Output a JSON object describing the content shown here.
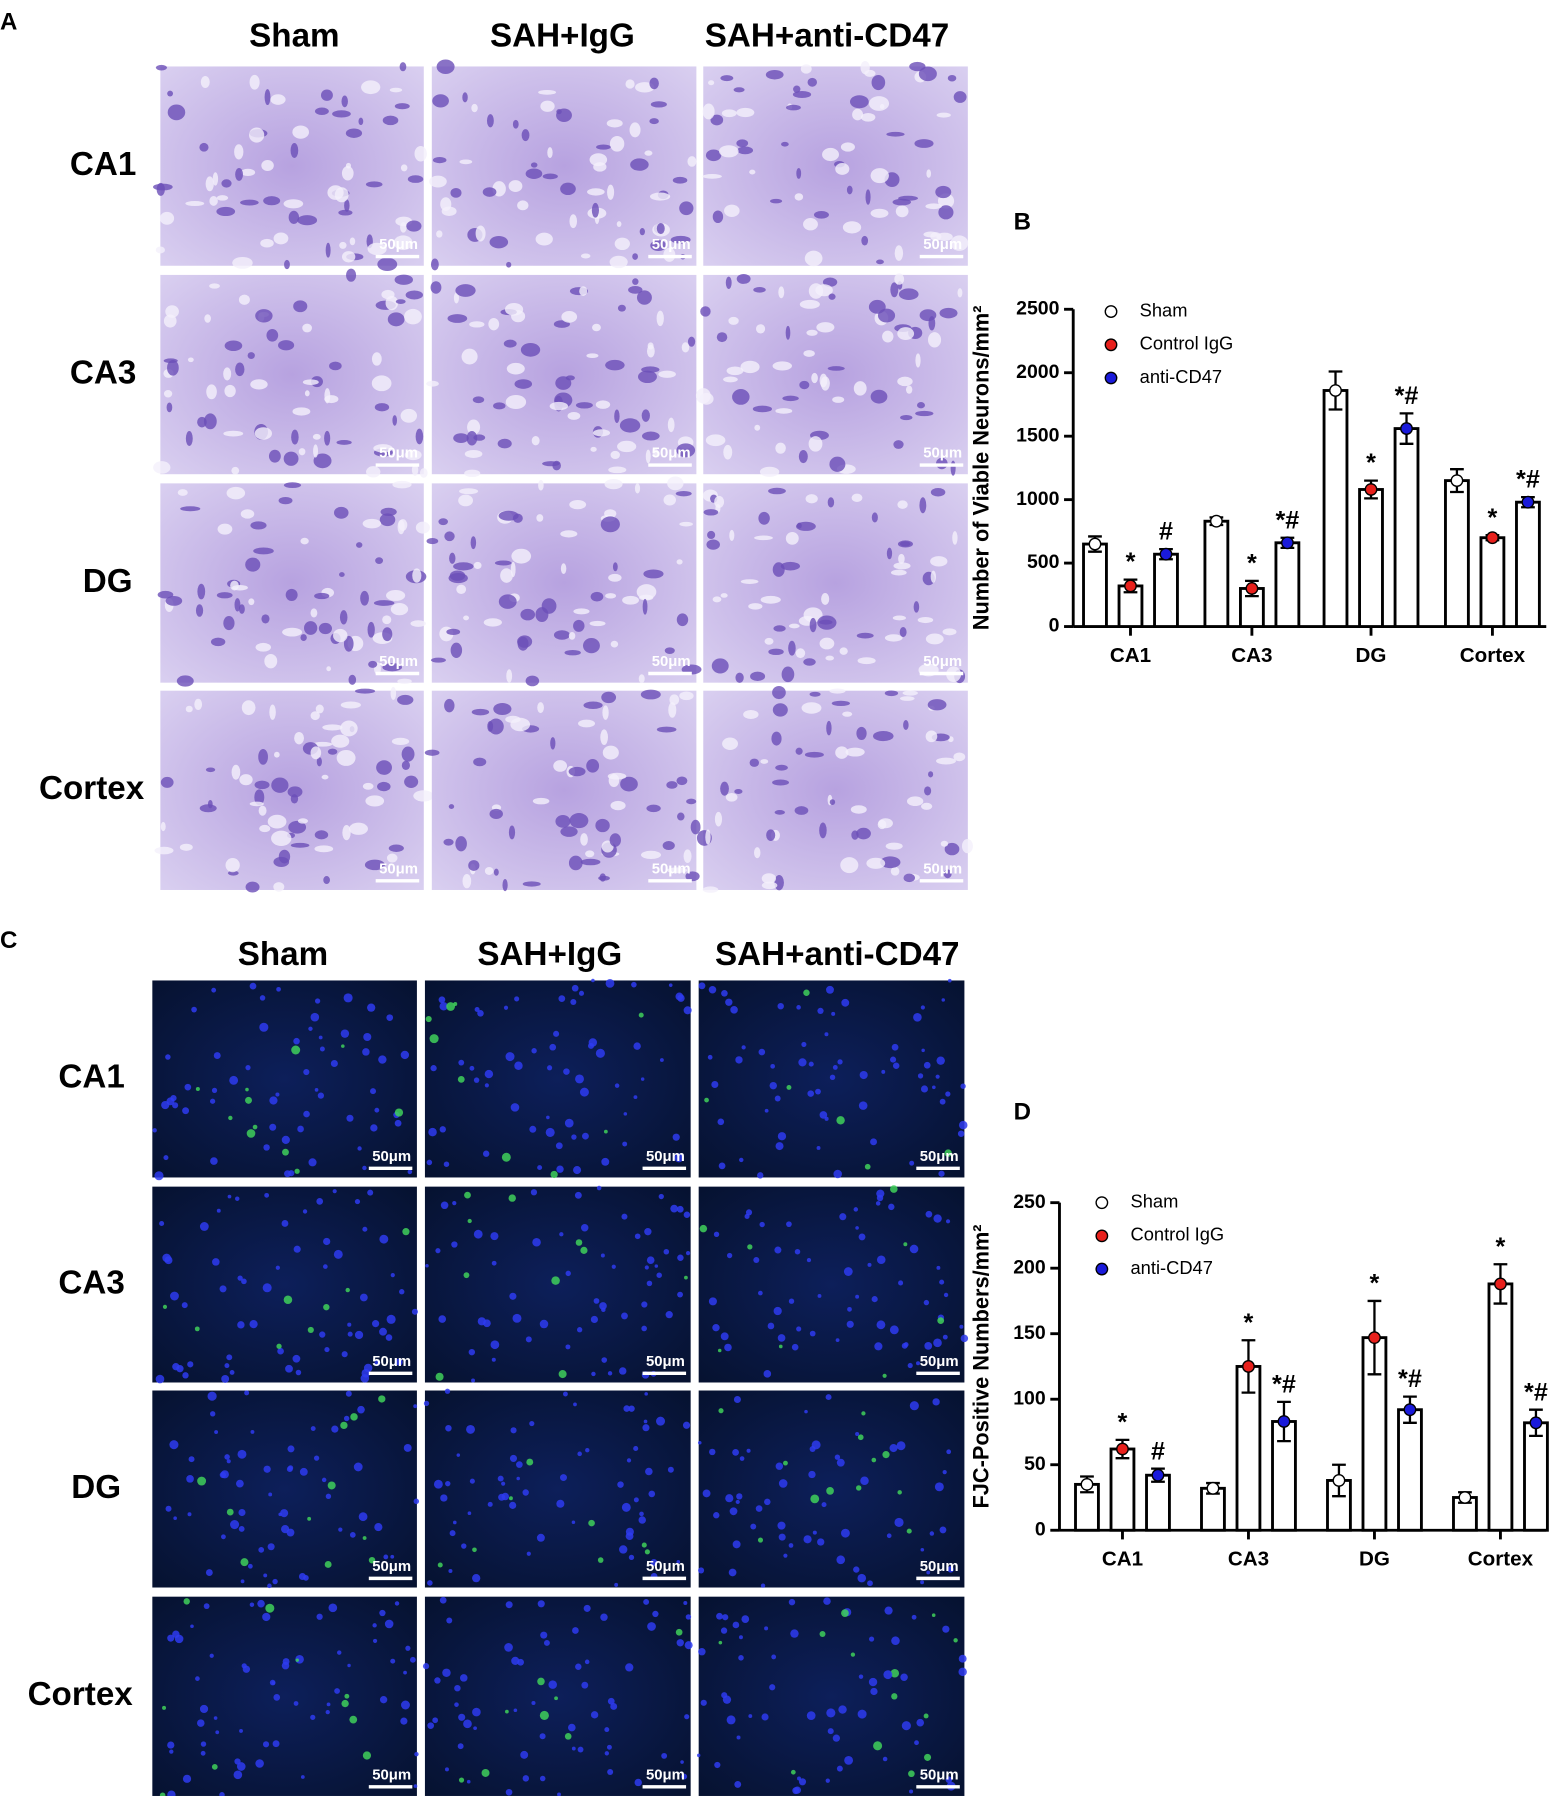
{
  "panel_a": {
    "label": "A",
    "columns": [
      "Sham",
      "SAH+IgG",
      "SAH+anti-CD47"
    ],
    "rows": [
      "CA1",
      "CA3",
      "DG",
      "Cortex"
    ],
    "scale_bar": "50μm"
  },
  "panel_c": {
    "label": "C",
    "columns": [
      "Sham",
      "SAH+IgG",
      "SAH+anti-CD47"
    ],
    "rows": [
      "CA1",
      "CA3",
      "DG",
      "Cortex"
    ],
    "scale_bar": "50μm"
  },
  "chart_data": [
    {
      "type": "bar",
      "label": "B",
      "y_label": "Number of Viable Neurons/mm²",
      "categories": [
        "CA1",
        "CA3",
        "DG",
        "Cortex"
      ],
      "series": [
        {
          "name": "Sham",
          "color": "#ffffff",
          "values": [
            650,
            830,
            1860,
            1150
          ],
          "errors": [
            60,
            30,
            150,
            90
          ]
        },
        {
          "name": "Control IgG",
          "color": "#e8201c",
          "values": [
            320,
            300,
            1080,
            700
          ],
          "errors": [
            50,
            60,
            70,
            20
          ],
          "markers": [
            "*",
            "*",
            "*",
            "*"
          ]
        },
        {
          "name": "anti-CD47",
          "color": "#1a1adb",
          "values": [
            570,
            660,
            1560,
            980
          ],
          "errors": [
            40,
            40,
            120,
            40
          ],
          "markers": [
            "#",
            "*#",
            "*#",
            "*#"
          ]
        }
      ],
      "ylim": [
        0,
        2500
      ],
      "yticks": [
        0,
        500,
        1000,
        1500,
        2000,
        2500
      ],
      "legend": "top-left"
    },
    {
      "type": "bar",
      "label": "D",
      "y_label": "FJC-Positive Numbers/mm²",
      "categories": [
        "CA1",
        "CA3",
        "DG",
        "Cortex"
      ],
      "series": [
        {
          "name": "Sham",
          "color": "#ffffff",
          "values": [
            35,
            32,
            38,
            25
          ],
          "errors": [
            6,
            4,
            12,
            4
          ]
        },
        {
          "name": "Control IgG",
          "color": "#e8201c",
          "values": [
            62,
            125,
            147,
            188
          ],
          "errors": [
            7,
            20,
            28,
            15
          ],
          "markers": [
            "*",
            "*",
            "*",
            "*"
          ]
        },
        {
          "name": "anti-CD47",
          "color": "#1a1adb",
          "values": [
            42,
            83,
            92,
            82
          ],
          "errors": [
            5,
            15,
            10,
            10
          ],
          "markers": [
            "#",
            "*#",
            "*#",
            "*#"
          ]
        }
      ],
      "ylim": [
        0,
        250
      ],
      "yticks": [
        0,
        50,
        100,
        150,
        200,
        250
      ],
      "legend": "top-left"
    }
  ]
}
